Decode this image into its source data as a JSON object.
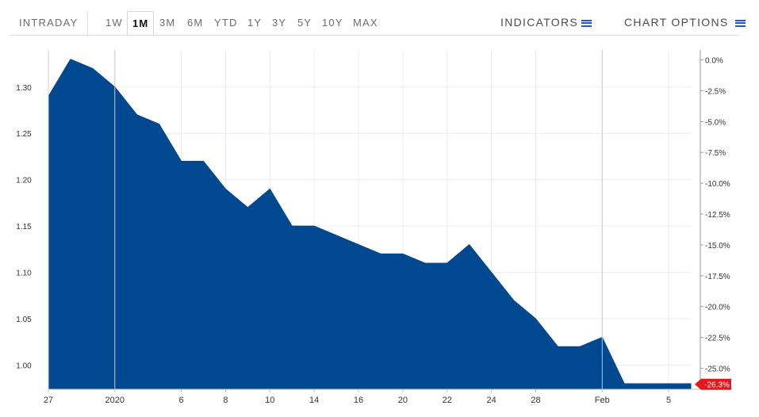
{
  "toolbar": {
    "ranges": [
      "INTRADAY",
      "1W",
      "1M",
      "3M",
      "6M",
      "YTD",
      "1Y",
      "3Y",
      "5Y",
      "10Y",
      "MAX"
    ],
    "active_range": "1M",
    "indicators_label": "INDICATORS",
    "chart_options_label": "CHART OPTIONS"
  },
  "colors": {
    "area_fill": "#004890",
    "last_badge": "#e4181c",
    "accent_icon": "#1d5ac4"
  },
  "chart_data": {
    "type": "area",
    "x_index_range": [
      0,
      29
    ],
    "x_tick_labels": [
      {
        "i": 0,
        "label": "27"
      },
      {
        "i": 3,
        "label": "2020"
      },
      {
        "i": 6,
        "label": "6"
      },
      {
        "i": 8,
        "label": "8"
      },
      {
        "i": 10,
        "label": "10"
      },
      {
        "i": 12,
        "label": "14"
      },
      {
        "i": 14,
        "label": "16"
      },
      {
        "i": 16,
        "label": "20"
      },
      {
        "i": 18,
        "label": "22"
      },
      {
        "i": 20,
        "label": "24"
      },
      {
        "i": 22,
        "label": "28"
      },
      {
        "i": 25,
        "label": "Feb"
      },
      {
        "i": 28,
        "label": "5"
      }
    ],
    "vertical_separators": [
      3,
      25
    ],
    "values": [
      1.29,
      1.33,
      1.32,
      1.3,
      1.27,
      1.26,
      1.22,
      1.22,
      1.19,
      1.17,
      1.19,
      1.15,
      1.15,
      1.14,
      1.13,
      1.12,
      1.12,
      1.11,
      1.11,
      1.13,
      1.1,
      1.07,
      1.05,
      1.02,
      1.02,
      1.03,
      0.98,
      0.98,
      0.98,
      0.98
    ],
    "ylim": [
      0.974,
      1.34
    ],
    "y_ticks": [
      1.0,
      1.05,
      1.1,
      1.15,
      1.2,
      1.25,
      1.3
    ],
    "y_tick_labels": [
      "1.00",
      "1.05",
      "1.10",
      "1.15",
      "1.20",
      "1.25",
      "1.30"
    ],
    "pct_ticks": [
      0.0,
      -2.5,
      -5.0,
      -7.5,
      -10.0,
      -12.5,
      -15.0,
      -17.5,
      -20.0,
      -22.5,
      -25.0
    ],
    "pct_tick_labels": [
      "0.0%",
      "-2.5%",
      "-5.0%",
      "-7.5%",
      "-10.0%",
      "-12.5%",
      "-15.0%",
      "-17.5%",
      "-20.0%",
      "-22.5%",
      "-25.0%"
    ],
    "pct_ylim": [
      -26.7,
      0.8
    ],
    "last_change_label": "-26.3%",
    "last_change_value": -26.3,
    "grid": true
  }
}
